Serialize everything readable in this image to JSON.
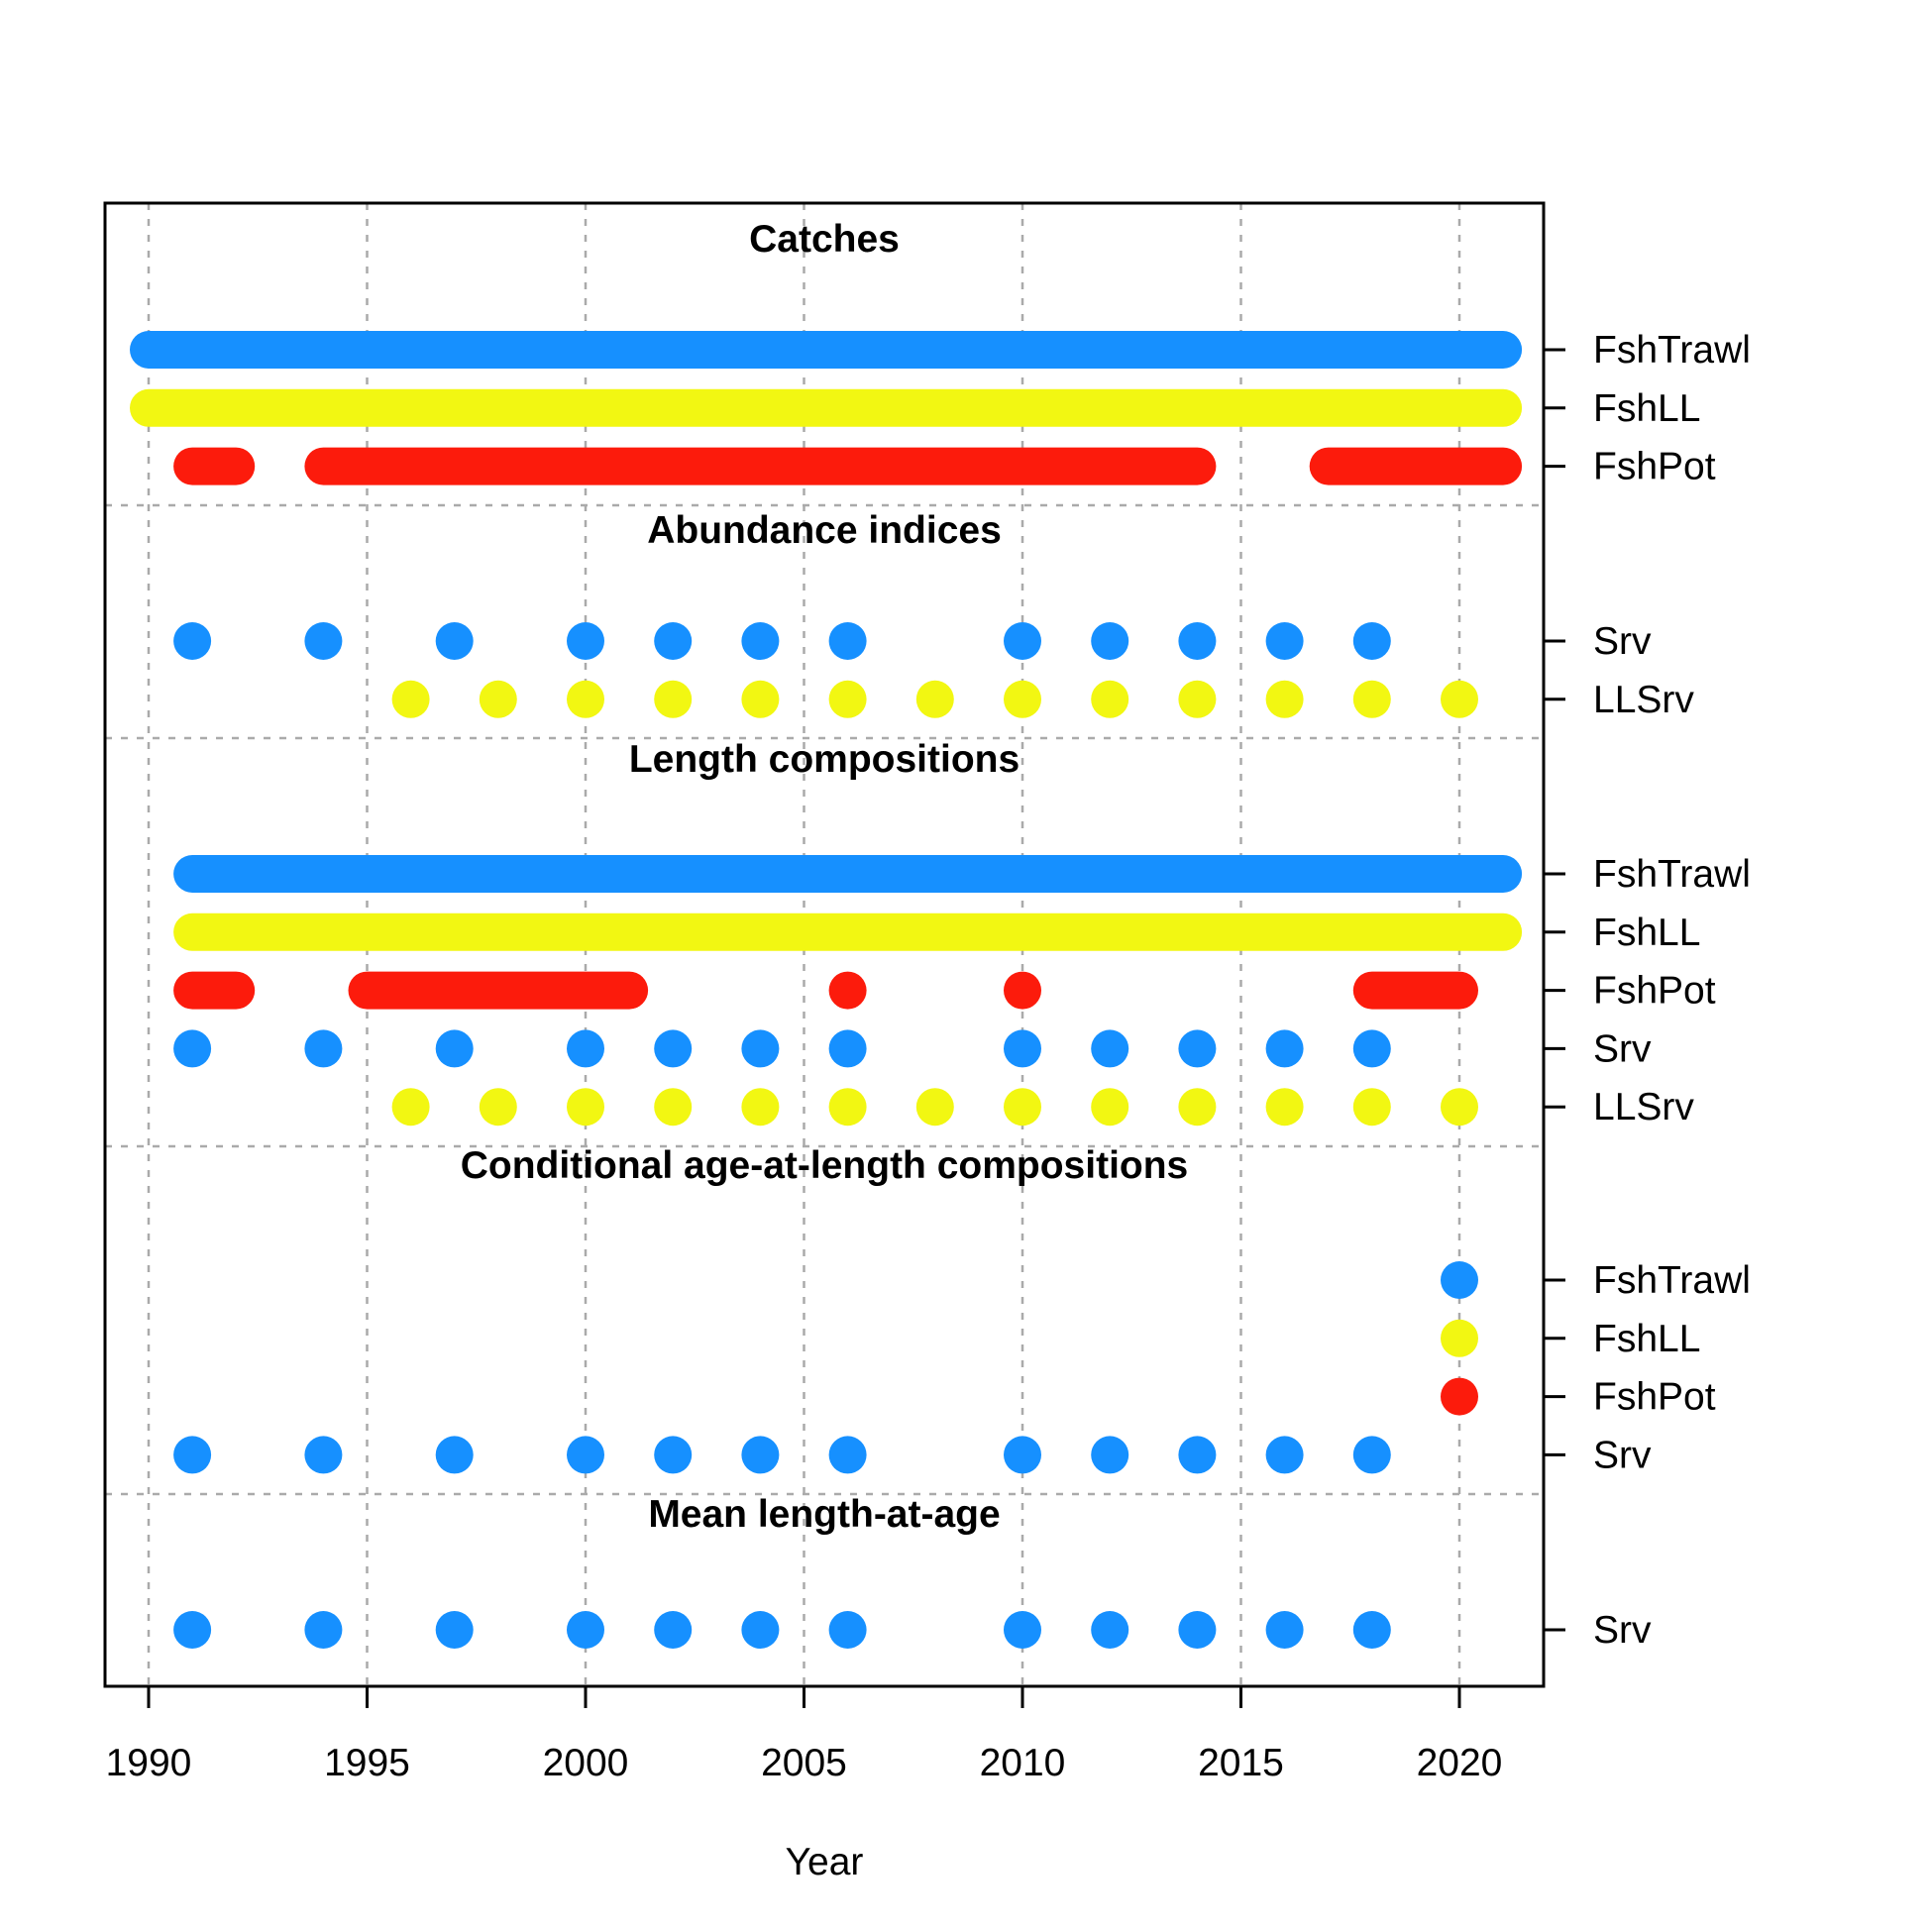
{
  "chart_data": {
    "type": "timeline",
    "xlabel": "Year",
    "xlim": [
      1989,
      2022
    ],
    "xticks": [
      1990,
      1995,
      2000,
      2005,
      2010,
      2015,
      2020
    ],
    "grid": true,
    "colors": {
      "FshTrawl": "#1690FF",
      "FshLL": "#F2F712",
      "FshPot": "#FC1B0C",
      "Srv": "#1690FF",
      "LLSrv": "#F2F712"
    },
    "sections": [
      {
        "title": "Catches",
        "rows": [
          {
            "fleet": "FshTrawl",
            "years": [
              1990,
              1991,
              1992,
              1993,
              1994,
              1995,
              1996,
              1997,
              1998,
              1999,
              2000,
              2001,
              2002,
              2003,
              2004,
              2005,
              2006,
              2007,
              2008,
              2009,
              2010,
              2011,
              2012,
              2013,
              2014,
              2015,
              2016,
              2017,
              2018,
              2019,
              2020,
              2021
            ]
          },
          {
            "fleet": "FshLL",
            "years": [
              1990,
              1991,
              1992,
              1993,
              1994,
              1995,
              1996,
              1997,
              1998,
              1999,
              2000,
              2001,
              2002,
              2003,
              2004,
              2005,
              2006,
              2007,
              2008,
              2009,
              2010,
              2011,
              2012,
              2013,
              2014,
              2015,
              2016,
              2017,
              2018,
              2019,
              2020,
              2021
            ]
          },
          {
            "fleet": "FshPot",
            "years": [
              1991,
              1992,
              1994,
              1995,
              1996,
              1997,
              1998,
              1999,
              2000,
              2001,
              2002,
              2003,
              2004,
              2005,
              2006,
              2007,
              2008,
              2009,
              2010,
              2011,
              2012,
              2013,
              2014,
              2017,
              2018,
              2019,
              2020,
              2021
            ]
          }
        ]
      },
      {
        "title": "Abundance indices",
        "rows": [
          {
            "fleet": "Srv",
            "years": [
              1991,
              1994,
              1997,
              2000,
              2002,
              2004,
              2006,
              2010,
              2012,
              2014,
              2016,
              2018
            ]
          },
          {
            "fleet": "LLSrv",
            "years": [
              1996,
              1998,
              2000,
              2002,
              2004,
              2006,
              2008,
              2010,
              2012,
              2014,
              2016,
              2018,
              2020
            ]
          }
        ]
      },
      {
        "title": "Length compositions",
        "rows": [
          {
            "fleet": "FshTrawl",
            "years": [
              1991,
              1992,
              1993,
              1994,
              1995,
              1996,
              1997,
              1998,
              1999,
              2000,
              2001,
              2002,
              2003,
              2004,
              2005,
              2006,
              2007,
              2008,
              2009,
              2010,
              2011,
              2012,
              2013,
              2014,
              2015,
              2016,
              2017,
              2018,
              2019,
              2020,
              2021
            ]
          },
          {
            "fleet": "FshLL",
            "years": [
              1991,
              1992,
              1993,
              1994,
              1995,
              1996,
              1997,
              1998,
              1999,
              2000,
              2001,
              2002,
              2003,
              2004,
              2005,
              2006,
              2007,
              2008,
              2009,
              2010,
              2011,
              2012,
              2013,
              2014,
              2015,
              2016,
              2017,
              2018,
              2019,
              2020,
              2021
            ]
          },
          {
            "fleet": "FshPot",
            "years": [
              1991,
              1992,
              1995,
              1996,
              1997,
              1998,
              1999,
              2000,
              2001,
              2006,
              2010,
              2018,
              2019,
              2020
            ]
          },
          {
            "fleet": "Srv",
            "years": [
              1991,
              1994,
              1997,
              2000,
              2002,
              2004,
              2006,
              2010,
              2012,
              2014,
              2016,
              2018
            ]
          },
          {
            "fleet": "LLSrv",
            "years": [
              1996,
              1998,
              2000,
              2002,
              2004,
              2006,
              2008,
              2010,
              2012,
              2014,
              2016,
              2018,
              2020
            ]
          }
        ]
      },
      {
        "title": "Conditional age-at-length compositions",
        "rows": [
          {
            "fleet": "FshTrawl",
            "years": [
              2020
            ]
          },
          {
            "fleet": "FshLL",
            "years": [
              2020
            ]
          },
          {
            "fleet": "FshPot",
            "years": [
              2020
            ]
          },
          {
            "fleet": "Srv",
            "years": [
              1991,
              1994,
              1997,
              2000,
              2002,
              2004,
              2006,
              2010,
              2012,
              2014,
              2016,
              2018
            ]
          }
        ]
      },
      {
        "title": "Mean length-at-age",
        "rows": [
          {
            "fleet": "Srv",
            "years": [
              1991,
              1994,
              1997,
              2000,
              2002,
              2004,
              2006,
              2010,
              2012,
              2014,
              2016,
              2018
            ]
          }
        ]
      }
    ]
  }
}
